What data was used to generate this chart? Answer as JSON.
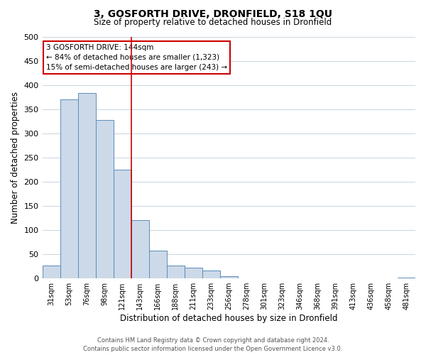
{
  "title": "3, GOSFORTH DRIVE, DRONFIELD, S18 1QU",
  "subtitle": "Size of property relative to detached houses in Dronfield",
  "xlabel": "Distribution of detached houses by size in Dronfield",
  "ylabel": "Number of detached properties",
  "bar_labels": [
    "31sqm",
    "53sqm",
    "76sqm",
    "98sqm",
    "121sqm",
    "143sqm",
    "166sqm",
    "188sqm",
    "211sqm",
    "233sqm",
    "256sqm",
    "278sqm",
    "301sqm",
    "323sqm",
    "346sqm",
    "368sqm",
    "391sqm",
    "413sqm",
    "436sqm",
    "458sqm",
    "481sqm"
  ],
  "bar_values": [
    27,
    370,
    383,
    327,
    225,
    120,
    58,
    27,
    22,
    16,
    5,
    1,
    0,
    0,
    0,
    0,
    0,
    0,
    0,
    0,
    2
  ],
  "bar_color": "#ccd9e8",
  "bar_edge_color": "#5b8db8",
  "vline_index": 5,
  "vline_color": "#cc0000",
  "ylim": [
    0,
    500
  ],
  "yticks": [
    0,
    50,
    100,
    150,
    200,
    250,
    300,
    350,
    400,
    450,
    500
  ],
  "annotation_title": "3 GOSFORTH DRIVE: 144sqm",
  "annotation_line1": "← 84% of detached houses are smaller (1,323)",
  "annotation_line2": "15% of semi-detached houses are larger (243) →",
  "annotation_box_color": "#ffffff",
  "annotation_box_edge": "#cc0000",
  "footer_line1": "Contains HM Land Registry data © Crown copyright and database right 2024.",
  "footer_line2": "Contains public sector information licensed under the Open Government Licence v3.0.",
  "bg_color": "#ffffff",
  "grid_color": "#c8d4e0"
}
